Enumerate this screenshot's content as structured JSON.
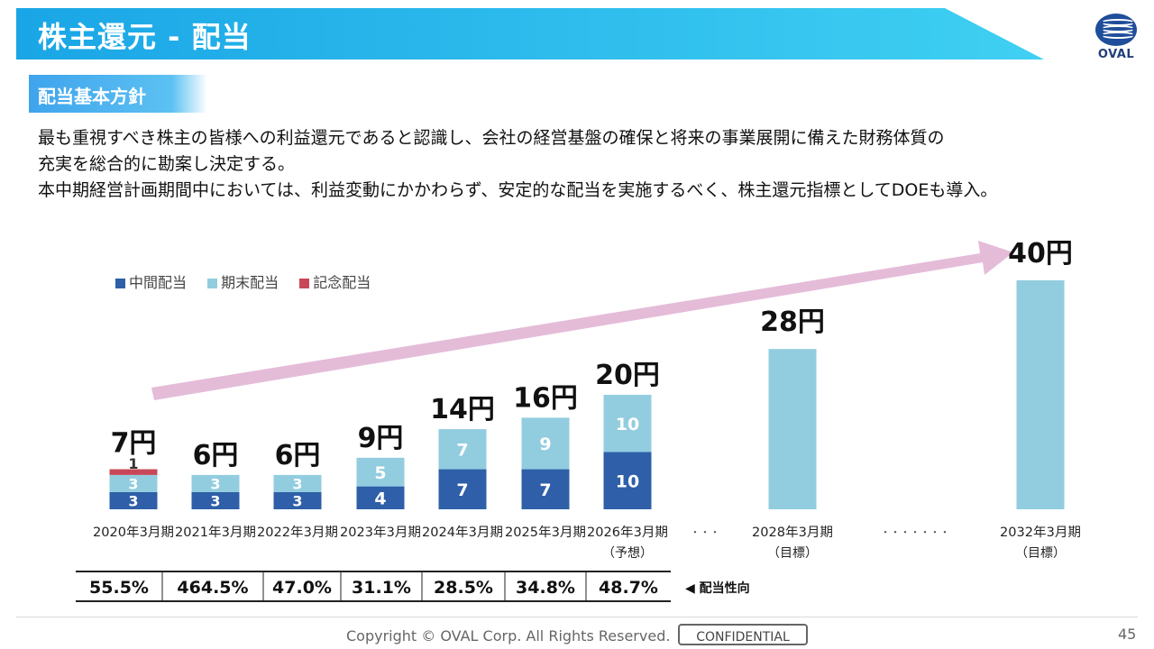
{
  "header": {
    "title": "株主還元 - 配当",
    "logo_text": "OVAL"
  },
  "policy": {
    "tag": "配当基本方針",
    "lines": [
      "最も重視すべき株主の皆様への利益還元であると認識し、会社の経営基盤の確保と将来の事業展開に備えた財務体質の",
      "充実を総合的に勘案し決定する。",
      "本中期経営計画期間中においては、利益変動にかかわらず、安定的な配当を実施するべく、株主還元指標としてDOEも導入。"
    ]
  },
  "colors": {
    "interim": "#2e5fa8",
    "year_end": "#92cddf",
    "commemorative": "#c8485a",
    "arrow": "#e4bcd8",
    "title_band": "#1aa6e6"
  },
  "chart_data": {
    "type": "bar",
    "stacked": true,
    "legend": [
      "中間配当",
      "期末配当",
      "記念配当"
    ],
    "legend_position": "top-left",
    "categories": [
      "2020年3月期",
      "2021年3月期",
      "2022年3月期",
      "2023年3月期",
      "2024年3月期",
      "2025年3月期",
      "2026年3月期",
      "2028年3月期",
      "2032年3月期"
    ],
    "category_notes": [
      "",
      "",
      "",
      "",
      "",
      "",
      "（予想）",
      "（目標）",
      "（目標）"
    ],
    "series": [
      {
        "name": "中間配当",
        "values": [
          3,
          3,
          3,
          4,
          7,
          7,
          10,
          null,
          null
        ]
      },
      {
        "name": "期末配当",
        "values": [
          3,
          3,
          3,
          5,
          7,
          9,
          10,
          null,
          null
        ]
      },
      {
        "name": "記念配当",
        "values": [
          1,
          0,
          0,
          0,
          0,
          0,
          0,
          null,
          null
        ]
      }
    ],
    "target_values": [
      null,
      null,
      null,
      null,
      null,
      null,
      null,
      28,
      40
    ],
    "totals": [
      "7円",
      "6円",
      "6円",
      "9円",
      "14円",
      "16円",
      "20円",
      "28円",
      "40円"
    ],
    "payout_ratios": [
      "55.5%",
      "464.5%",
      "47.0%",
      "31.1%",
      "28.5%",
      "34.8%",
      "48.7%"
    ],
    "payout_label": "◀ 配当性向",
    "ellipsis_short": "・・・",
    "ellipsis_long": "・・・・・・・",
    "xlabel": "",
    "ylabel": "",
    "grid": false
  },
  "footer": {
    "copyright": "Copyright © OVAL Corp. All Rights Reserved.",
    "confidential": "CONFIDENTIAL",
    "page": "45"
  }
}
